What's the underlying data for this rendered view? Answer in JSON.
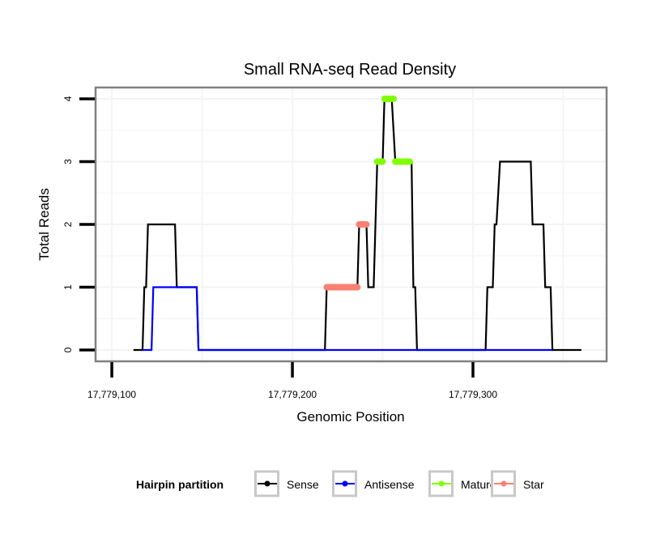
{
  "chart_data": {
    "type": "line",
    "title": "Small RNA-seq Read Density",
    "xlabel": "Genomic Position",
    "ylabel": "Total Reads",
    "xlim": [
      17779091,
      17779374
    ],
    "ylim": [
      -0.18,
      4.18
    ],
    "xticks": [
      {
        "value": 17779100,
        "label": "17,779,100"
      },
      {
        "value": 17779200,
        "label": "17,779,200"
      },
      {
        "value": 17779300,
        "label": "17,779,300"
      }
    ],
    "yticks": [
      {
        "value": 0,
        "label": "0"
      },
      {
        "value": 1,
        "label": "1"
      },
      {
        "value": 2,
        "label": "2"
      },
      {
        "value": 3,
        "label": "3"
      },
      {
        "value": 4,
        "label": "4"
      }
    ],
    "grid": true,
    "legend": {
      "title": "Hairpin partition",
      "position": "bottom",
      "entries": [
        {
          "label": "Sense",
          "color": "#000000"
        },
        {
          "label": "Antisense",
          "color": "#0000ff"
        },
        {
          "label": "Mature",
          "color": "#7fff00"
        },
        {
          "label": "Star",
          "color": "#fa8072"
        }
      ]
    },
    "series": [
      {
        "name": "Sense",
        "color": "#000000",
        "style": "line",
        "points": [
          [
            17779112,
            0
          ],
          [
            17779117,
            0
          ],
          [
            17779118,
            1
          ],
          [
            17779119,
            1
          ],
          [
            17779120,
            2
          ],
          [
            17779135,
            2
          ],
          [
            17779136,
            1
          ],
          [
            17779147,
            1
          ],
          [
            17779148,
            0
          ],
          [
            17779218,
            0
          ],
          [
            17779219,
            1
          ],
          [
            17779236,
            1
          ],
          [
            17779237,
            2
          ],
          [
            17779241,
            2
          ],
          [
            17779242,
            1
          ],
          [
            17779245,
            1
          ],
          [
            17779247,
            3
          ],
          [
            17779250,
            3
          ],
          [
            17779251,
            4
          ],
          [
            17779255,
            4
          ],
          [
            17779257,
            3
          ],
          [
            17779266,
            3
          ],
          [
            17779267,
            1
          ],
          [
            17779268,
            1
          ],
          [
            17779269,
            0
          ],
          [
            17779307,
            0
          ],
          [
            17779308,
            1
          ],
          [
            17779311,
            1
          ],
          [
            17779312,
            2
          ],
          [
            17779313,
            2
          ],
          [
            17779315,
            3
          ],
          [
            17779332,
            3
          ],
          [
            17779333,
            2
          ],
          [
            17779339,
            2
          ],
          [
            17779340,
            1
          ],
          [
            17779343,
            1
          ],
          [
            17779344,
            0
          ],
          [
            17779360,
            0
          ]
        ]
      },
      {
        "name": "Antisense",
        "color": "#0000ff",
        "style": "line",
        "points": [
          [
            17779117,
            0
          ],
          [
            17779122,
            0
          ],
          [
            17779123,
            1
          ],
          [
            17779147,
            1
          ],
          [
            17779148,
            0
          ],
          [
            17779150,
            0
          ],
          [
            17779218,
            0
          ],
          [
            17779269,
            0
          ],
          [
            17779307,
            0
          ],
          [
            17779344,
            0
          ]
        ]
      },
      {
        "name": "Star",
        "color": "#fa8072",
        "style": "segments",
        "segments": [
          {
            "x0": 17779219,
            "x1": 17779236,
            "y": 1
          },
          {
            "x0": 17779237,
            "x1": 17779241,
            "y": 2
          }
        ]
      },
      {
        "name": "Mature",
        "color": "#7fff00",
        "style": "segments",
        "segments": [
          {
            "x0": 17779247,
            "x1": 17779250,
            "y": 3
          },
          {
            "x0": 17779251,
            "x1": 17779256,
            "y": 4
          },
          {
            "x0": 17779257,
            "x1": 17779265,
            "y": 3
          }
        ]
      }
    ]
  }
}
